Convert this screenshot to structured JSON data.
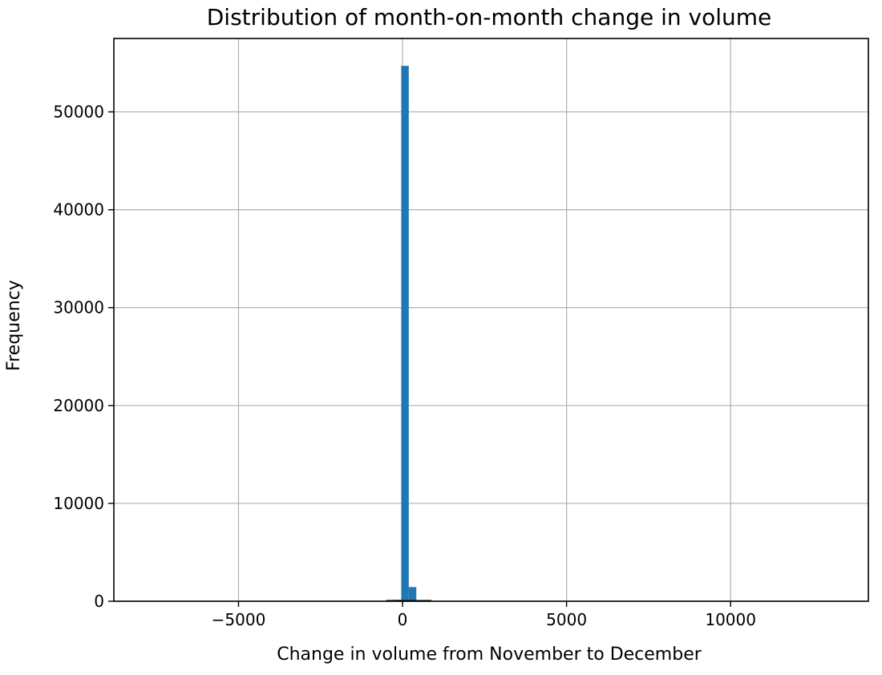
{
  "chart_data": {
    "type": "bar",
    "title": "Distribution of month-on-month change in volume",
    "xlabel": "Change in volume from November to December",
    "ylabel": "Frequency",
    "xlim": [
      -8800,
      14200
    ],
    "ylim": [
      0,
      57500
    ],
    "xticks": [
      {
        "value": -5000,
        "label": "−5000"
      },
      {
        "value": 0,
        "label": "0"
      },
      {
        "value": 5000,
        "label": "5000"
      },
      {
        "value": 10000,
        "label": "10000"
      }
    ],
    "yticks": [
      {
        "value": 0,
        "label": "0"
      },
      {
        "value": 10000,
        "label": "10000"
      },
      {
        "value": 20000,
        "label": "20000"
      },
      {
        "value": 30000,
        "label": "30000"
      },
      {
        "value": 40000,
        "label": "40000"
      },
      {
        "value": 50000,
        "label": "50000"
      }
    ],
    "grid": true,
    "bar_color": "#1f77b4",
    "bins": [
      {
        "start": -500,
        "end": -270,
        "count": 80
      },
      {
        "start": -270,
        "end": -40,
        "count": 150
      },
      {
        "start": -40,
        "end": 190,
        "count": 54700
      },
      {
        "start": 190,
        "end": 420,
        "count": 1450
      },
      {
        "start": 420,
        "end": 650,
        "count": 120
      },
      {
        "start": 650,
        "end": 880,
        "count": 40
      }
    ]
  }
}
